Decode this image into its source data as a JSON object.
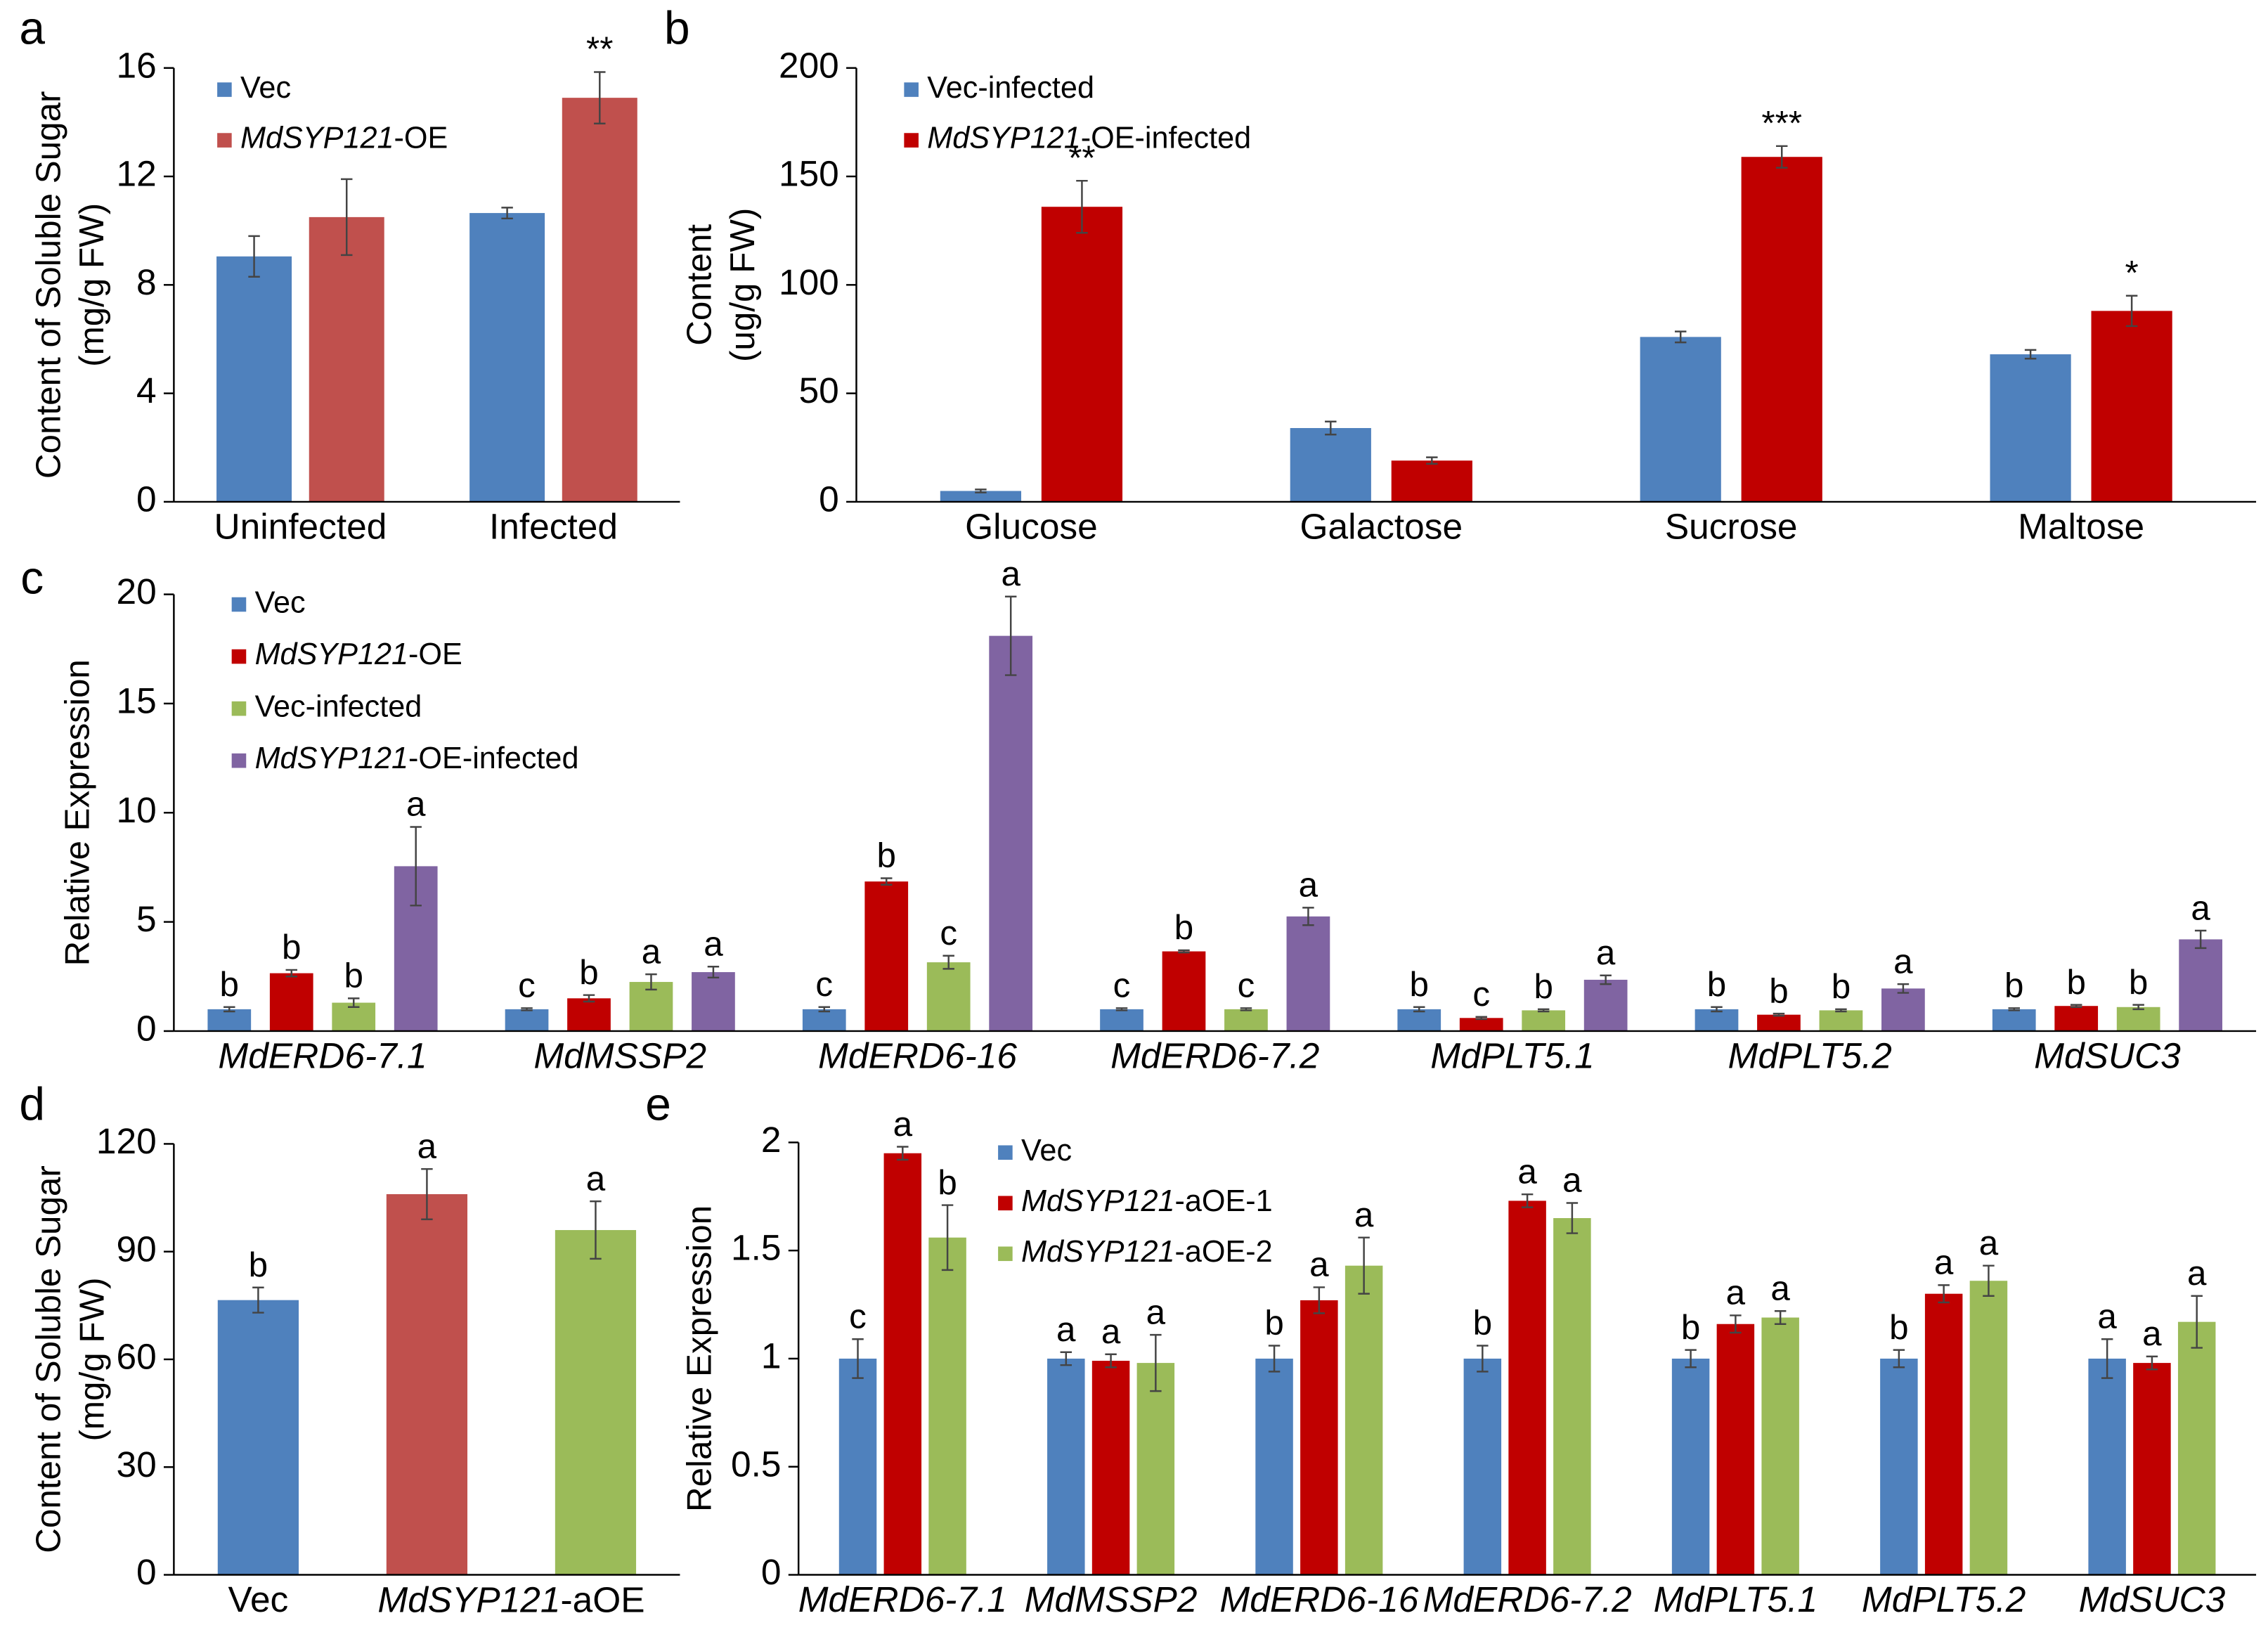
{
  "chart_data": [
    {
      "type": "bar",
      "panel": "a",
      "ylabel": [
        "Content of Soluble Sugar",
        "(mg/g FW)"
      ],
      "categories": [
        "Uninfected",
        "Infected"
      ],
      "ylim": [
        0,
        16
      ],
      "yticks": [
        0,
        4,
        8,
        12,
        16
      ],
      "series": [
        {
          "name": "Vec",
          "color": "#4f81bd",
          "values": [
            9.05,
            10.65
          ],
          "errors": [
            0.75,
            0.2
          ]
        },
        {
          "name": "MdSYP121-OE",
          "color": "#c0504d",
          "values": [
            10.5,
            14.9
          ],
          "errors": [
            1.4,
            0.95
          ],
          "annotations": [
            null,
            "**"
          ]
        }
      ]
    },
    {
      "type": "bar",
      "panel": "b",
      "ylabel": [
        "Content",
        "(ug/g FW)"
      ],
      "categories": [
        "Glucose",
        "Galactose",
        "Sucrose",
        "Maltose"
      ],
      "ylim": [
        0,
        200
      ],
      "yticks": [
        0,
        50,
        100,
        150,
        200
      ],
      "series": [
        {
          "name": "Vec-infected",
          "color": "#4f81bd",
          "values": [
            5,
            34,
            76,
            68
          ],
          "errors": [
            0.7,
            3,
            2.5,
            2
          ]
        },
        {
          "name": "MdSYP121-OE-infected",
          "color": "#c00000",
          "values": [
            136,
            19,
            159,
            88
          ],
          "errors": [
            12,
            1.5,
            5,
            7
          ],
          "annotations": [
            "**",
            null,
            "***",
            "*"
          ]
        }
      ]
    },
    {
      "type": "bar",
      "panel": "c",
      "ylabel": [
        "Relative Expression"
      ],
      "category_italic": true,
      "categories": [
        "MdERD6-7.1",
        "MdMSSP2",
        "MdERD6-16",
        "MdERD6-7.2",
        "MdPLT5.1",
        "MdPLT5.2",
        "MdSUC3"
      ],
      "ylim": [
        0,
        20
      ],
      "yticks": [
        0,
        5,
        10,
        15,
        20
      ],
      "series": [
        {
          "name": "Vec",
          "color": "#4f81bd",
          "values": [
            1,
            1,
            1,
            1,
            1,
            1,
            1
          ],
          "errors": [
            0.1,
            0.05,
            0.1,
            0.05,
            0.1,
            0.1,
            0.05
          ],
          "annotations": [
            "b",
            "c",
            "c",
            "c",
            "b",
            "b",
            "b"
          ]
        },
        {
          "name": "MdSYP121-OE",
          "color": "#c00000",
          "values": [
            2.65,
            1.5,
            6.85,
            3.65,
            0.6,
            0.75,
            1.15
          ],
          "errors": [
            0.15,
            0.15,
            0.15,
            0.05,
            0.05,
            0.05,
            0.05
          ],
          "annotations": [
            "b",
            "b",
            "b",
            "b",
            "c",
            "b",
            "b"
          ]
        },
        {
          "name": "Vec-infected",
          "color": "#9bbb59",
          "values": [
            1.3,
            2.25,
            3.15,
            1.0,
            0.95,
            0.95,
            1.1
          ],
          "errors": [
            0.2,
            0.35,
            0.3,
            0.05,
            0.05,
            0.05,
            0.1
          ],
          "annotations": [
            "b",
            "a",
            "c",
            "c",
            "b",
            "b",
            "b"
          ]
        },
        {
          "name": "MdSYP121-OE-infected",
          "color": "#8064a2",
          "values": [
            7.55,
            2.7,
            18.1,
            5.25,
            2.35,
            1.95,
            4.2
          ],
          "errors": [
            1.8,
            0.25,
            1.8,
            0.4,
            0.2,
            0.2,
            0.4
          ],
          "annotations": [
            "a",
            "a",
            "a",
            "a",
            "a",
            "a",
            "a"
          ]
        }
      ]
    },
    {
      "type": "bar",
      "panel": "d",
      "ylabel": [
        "Content of Soluble Sugar",
        "(mg/g FW)"
      ],
      "categories": [
        "Vec",
        "MdSYP121-aOE",
        null
      ],
      "ylim": [
        0,
        120
      ],
      "yticks": [
        0,
        30,
        60,
        90,
        120
      ],
      "values": [
        76.5,
        106,
        96
      ],
      "errors": [
        3.5,
        7,
        8
      ],
      "annotations": [
        "b",
        "a",
        "a"
      ],
      "colors": [
        "#4f81bd",
        "#c0504d",
        "#9bbb59"
      ]
    },
    {
      "type": "bar",
      "panel": "e",
      "ylabel": [
        "Relative Expression"
      ],
      "category_italic": true,
      "categories": [
        "MdERD6-7.1",
        "MdMSSP2",
        "MdERD6-16",
        "MdERD6-7.2",
        "MdPLT5.1",
        "MdPLT5.2",
        "MdSUC3"
      ],
      "ylim": [
        0,
        2
      ],
      "yticks": [
        0,
        0.5,
        1,
        1.5,
        2
      ],
      "series": [
        {
          "name": "Vec",
          "color": "#4f81bd",
          "values": [
            1,
            1,
            1,
            1,
            1,
            1,
            1
          ],
          "errors": [
            0.09,
            0.03,
            0.06,
            0.06,
            0.04,
            0.04,
            0.09
          ],
          "annotations": [
            "c",
            "a",
            "b",
            "b",
            "b",
            "b",
            "a"
          ]
        },
        {
          "name": "MdSYP121-aOE-1",
          "color": "#c00000",
          "values": [
            1.95,
            0.99,
            1.27,
            1.73,
            1.16,
            1.3,
            0.98
          ],
          "errors": [
            0.03,
            0.03,
            0.06,
            0.03,
            0.04,
            0.04,
            0.03
          ],
          "annotations": [
            "a",
            "a",
            "a",
            "a",
            "a",
            "a",
            "a"
          ]
        },
        {
          "name": "MdSYP121-aOE-2",
          "color": "#9bbb59",
          "values": [
            1.56,
            0.98,
            1.43,
            1.65,
            1.19,
            1.36,
            1.17
          ],
          "errors": [
            0.15,
            0.13,
            0.13,
            0.07,
            0.03,
            0.07,
            0.12
          ],
          "annotations": [
            "b",
            "a",
            "a",
            "a",
            "a",
            "a",
            "a"
          ]
        }
      ]
    }
  ]
}
